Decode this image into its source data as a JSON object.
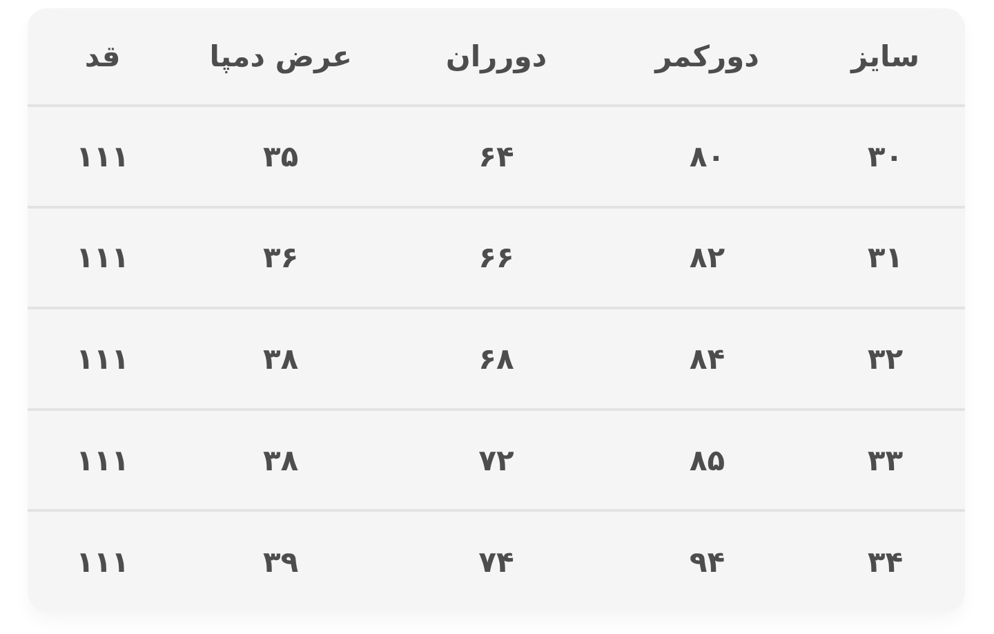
{
  "theme": {
    "page_bg": "#ffffff",
    "card_bg": "#f5f5f6",
    "divider_color": "#e3e3e3",
    "text_color": "#4d4d4d"
  },
  "table": {
    "direction": "rtl",
    "headers": [
      "سایز",
      "دورکمر",
      "دورران",
      "عرض دمپا",
      "قد"
    ],
    "rows": [
      [
        "۳۰",
        "۸۰",
        "۶۴",
        "۳۵",
        "۱۱۱"
      ],
      [
        "۳۱",
        "۸۲",
        "۶۶",
        "۳۶",
        "۱۱۱"
      ],
      [
        "۳۲",
        "۸۴",
        "۶۸",
        "۳۸",
        "۱۱۱"
      ],
      [
        "۳۳",
        "۸۵",
        "۷۲",
        "۳۸",
        "۱۱۱"
      ],
      [
        "۳۴",
        "۹۴",
        "۷۴",
        "۳۹",
        "۱۱۱"
      ]
    ]
  },
  "chart_data": {
    "type": "table",
    "title": "",
    "columns": [
      "سایز",
      "دورکمر",
      "دورران",
      "عرض دمپا",
      "قد"
    ],
    "rows": [
      [
        30,
        80,
        64,
        35,
        111
      ],
      [
        31,
        82,
        66,
        36,
        111
      ],
      [
        32,
        84,
        68,
        38,
        111
      ],
      [
        33,
        85,
        72,
        38,
        111
      ],
      [
        34,
        94,
        74,
        39,
        111
      ]
    ]
  }
}
